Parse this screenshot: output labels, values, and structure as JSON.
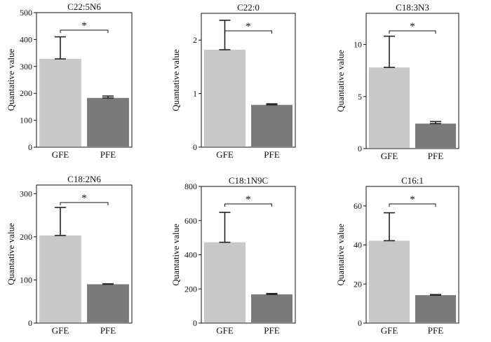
{
  "chart_data": [
    {
      "type": "bar",
      "title": "C22:5N6",
      "ylabel": "Quantative value",
      "categories": [
        "GFE",
        "PFE"
      ],
      "values": [
        328,
        183
      ],
      "error_upper": [
        410,
        190
      ],
      "ylim": [
        0,
        500
      ],
      "yticks": [
        0,
        100,
        200,
        300,
        400,
        500
      ],
      "significance": "*",
      "colors": [
        "#c8c8c8",
        "#7a7a7a"
      ]
    },
    {
      "type": "bar",
      "title": "C22:0",
      "ylabel": "Quantative value",
      "categories": [
        "GFE",
        "PFE"
      ],
      "values": [
        1.82,
        0.79
      ],
      "error_upper": [
        2.37,
        0.81
      ],
      "ylim": [
        0,
        2.5
      ],
      "yticks": [
        0,
        1,
        2
      ],
      "significance": "*",
      "colors": [
        "#c8c8c8",
        "#7a7a7a"
      ]
    },
    {
      "type": "bar",
      "title": "C18:3N3",
      "ylabel": "Quantative value",
      "categories": [
        "GFE",
        "PFE"
      ],
      "values": [
        7.8,
        2.4
      ],
      "error_upper": [
        10.8,
        2.6
      ],
      "ylim": [
        0,
        13
      ],
      "yticks": [
        0,
        5,
        10
      ],
      "significance": "*",
      "colors": [
        "#c8c8c8",
        "#7a7a7a"
      ]
    },
    {
      "type": "bar",
      "title": "C18:2N6",
      "ylabel": "Quantative value",
      "categories": [
        "GFE",
        "PFE"
      ],
      "values": [
        203,
        90
      ],
      "error_upper": [
        268,
        91
      ],
      "ylim": [
        0,
        320
      ],
      "yticks": [
        0,
        100,
        200,
        300
      ],
      "significance": "*",
      "colors": [
        "#c8c8c8",
        "#7a7a7a"
      ]
    },
    {
      "type": "bar",
      "title": "C18:1N9C",
      "ylabel": "Quantative value",
      "categories": [
        "GFE",
        "PFE"
      ],
      "values": [
        473,
        168
      ],
      "error_upper": [
        648,
        173
      ],
      "ylim": [
        0,
        800
      ],
      "yticks": [
        0,
        200,
        400,
        600,
        800
      ],
      "significance": "*",
      "colors": [
        "#c8c8c8",
        "#7a7a7a"
      ]
    },
    {
      "type": "bar",
      "title": "C16:1",
      "ylabel": "Quantative value",
      "categories": [
        "GFE",
        "PFE"
      ],
      "values": [
        42.2,
        14.3
      ],
      "error_upper": [
        56.5,
        14.6
      ],
      "ylim": [
        0,
        70
      ],
      "yticks": [
        0,
        20,
        40,
        60
      ],
      "significance": "*",
      "colors": [
        "#c8c8c8",
        "#7a7a7a"
      ]
    }
  ]
}
